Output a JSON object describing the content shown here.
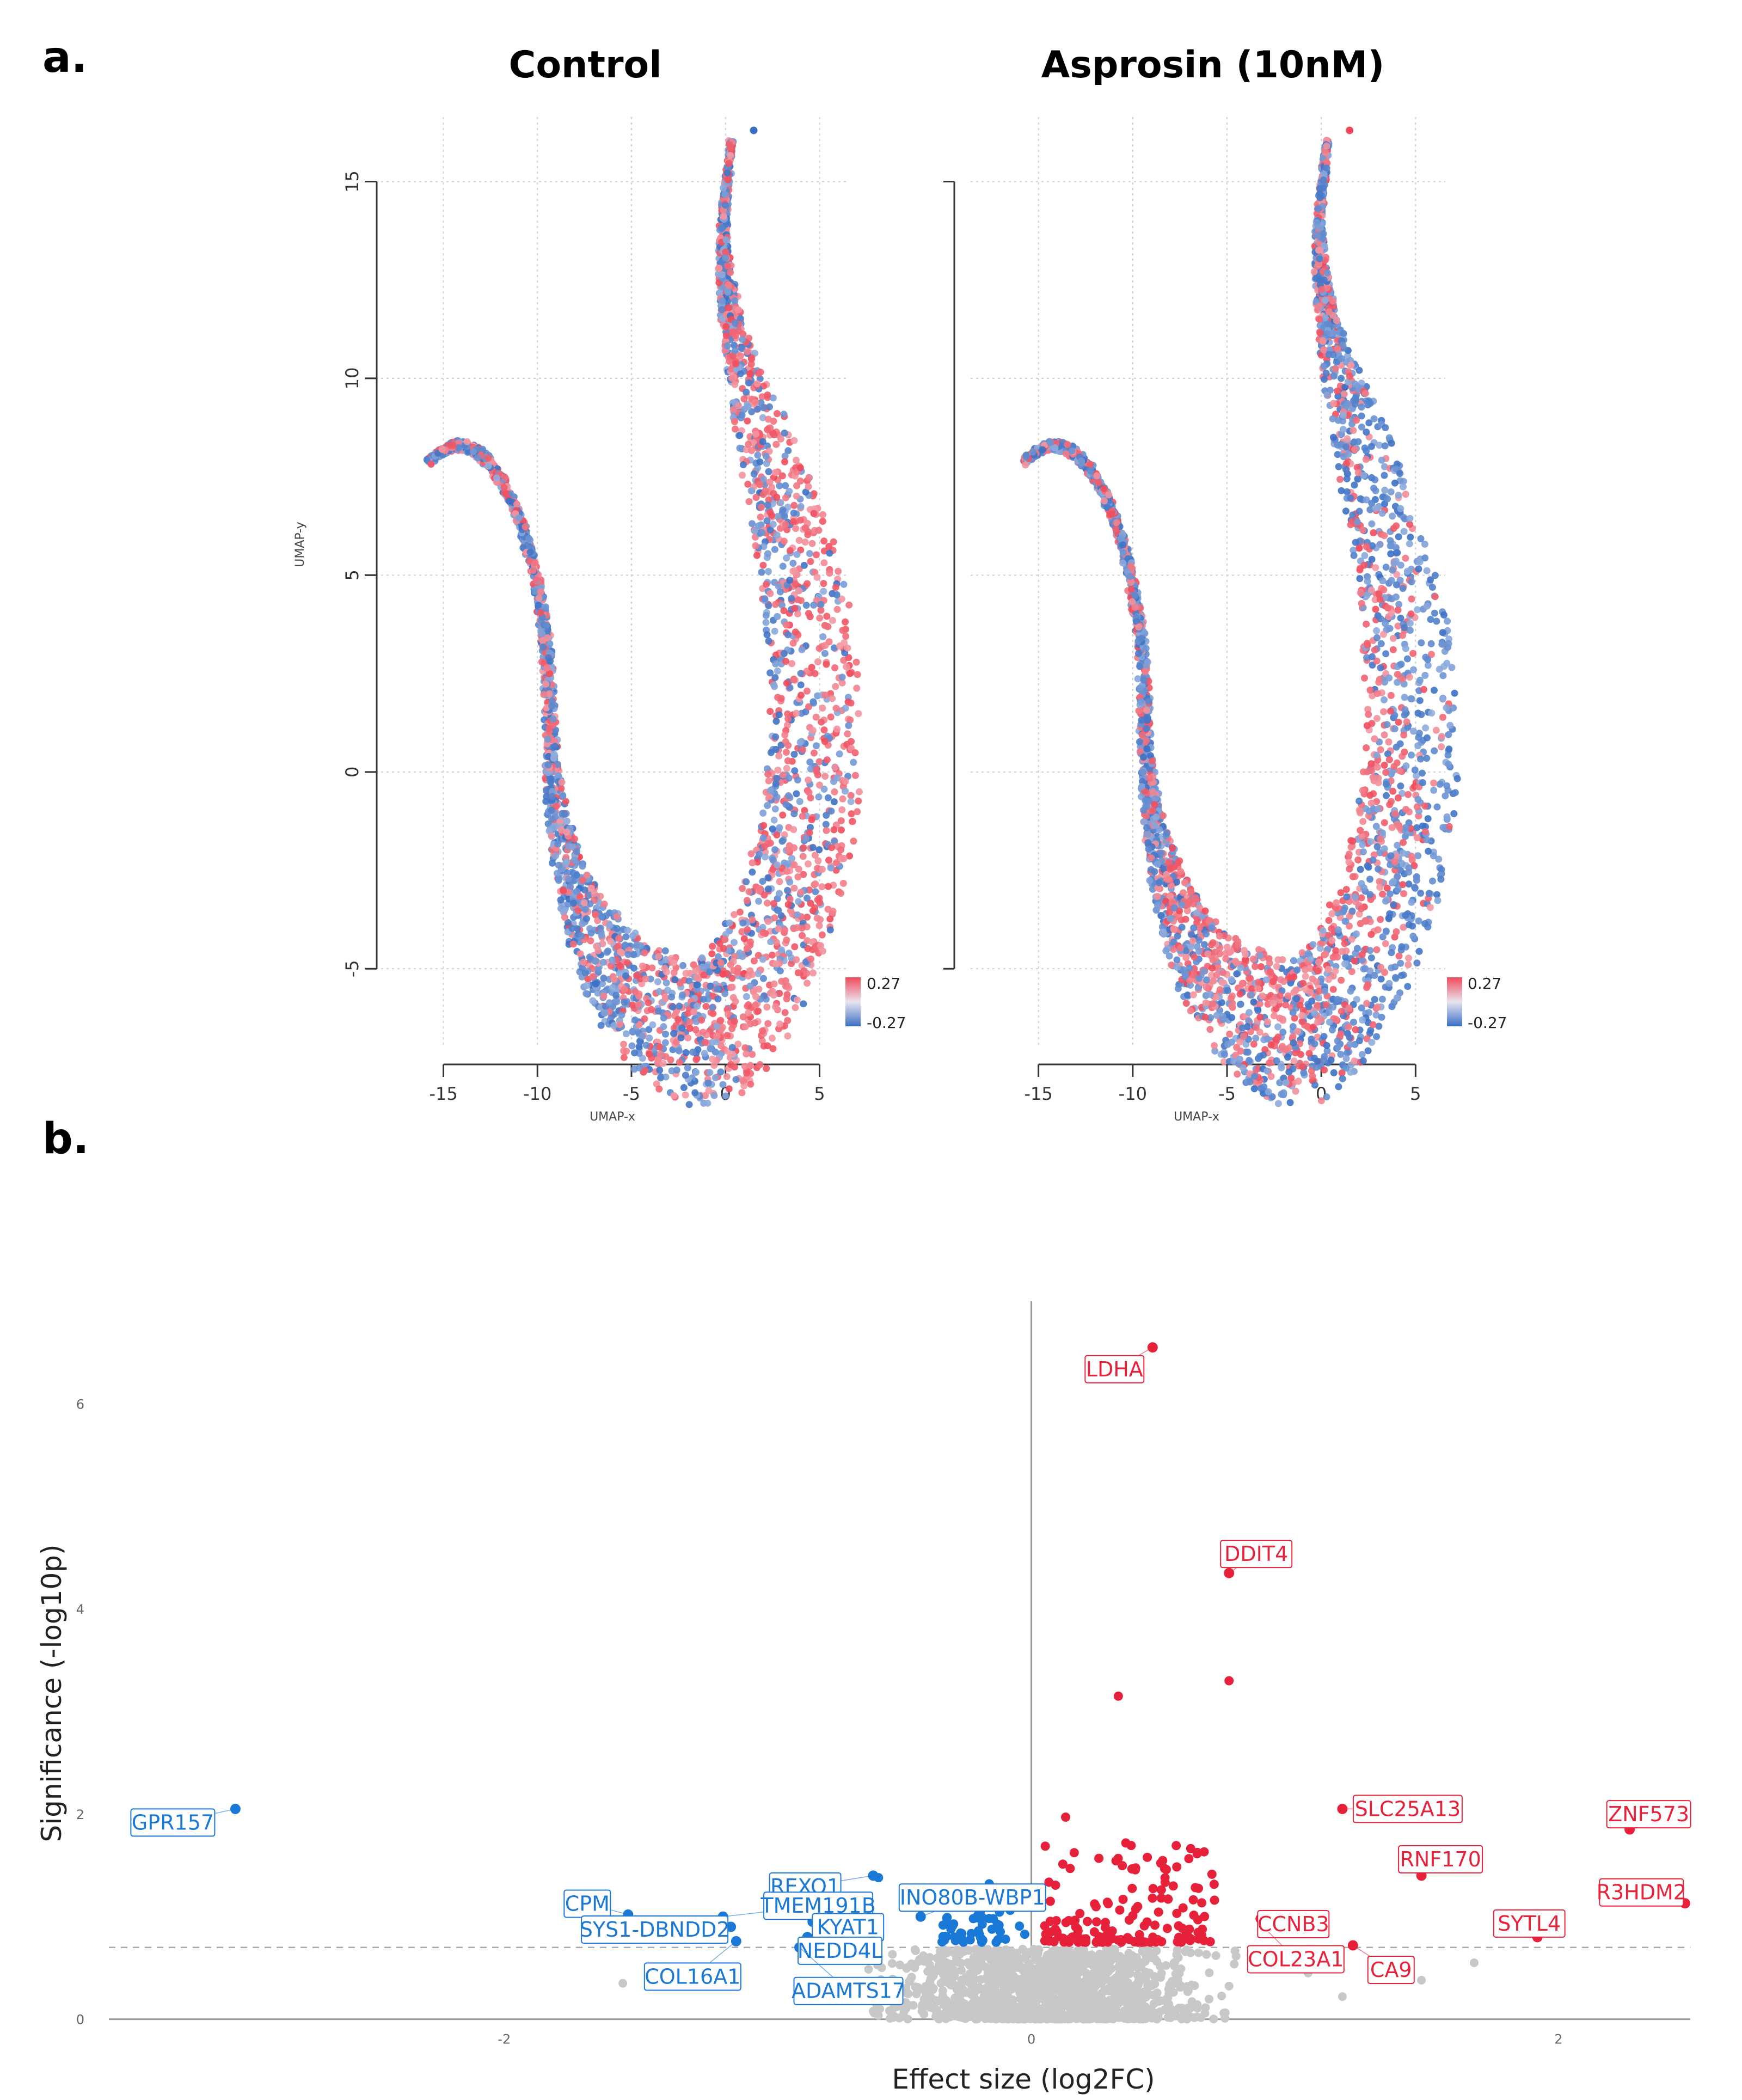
{
  "panels": {
    "a_label": "a.",
    "b_label": "b."
  },
  "chart_data": [
    {
      "type": "scatter",
      "title": "Control",
      "xlabel": "UMAP-x",
      "ylabel": "UMAP-y",
      "xlim": [
        -16,
        6
      ],
      "ylim": [
        -7.5,
        16.5
      ],
      "xticks": [
        "-15",
        "-10",
        "-5",
        "0",
        "5"
      ],
      "yticks": [
        "-5",
        "0",
        "5",
        "10",
        "15"
      ],
      "show_yaxis": true,
      "legend": {
        "position": "bottom-right",
        "max_label": "0.27",
        "min_label": "-0.27"
      },
      "grid": true,
      "colors": {
        "high": "#f04a5a",
        "low": "#3a6fc4"
      },
      "red_bias_regions": "upper arm inner edge, middle of curve",
      "seed": 7
    },
    {
      "type": "scatter",
      "title": "Asprosin (10nM)",
      "xlabel": "UMAP-x",
      "ylabel": "",
      "xlim": [
        -16,
        6
      ],
      "ylim": [
        -7.5,
        16.5
      ],
      "xticks": [
        "-15",
        "-10",
        "-5",
        "0",
        "5"
      ],
      "yticks": [],
      "show_yaxis": false,
      "legend": {
        "position": "bottom-right",
        "max_label": "0.27",
        "min_label": "-0.27"
      },
      "grid": true,
      "colors": {
        "high": "#f04a5a",
        "low": "#3a6fc4"
      },
      "red_bias_regions": "outer edge and bottom of curve",
      "seed": 19
    },
    {
      "type": "scatter",
      "subtype": "volcano",
      "xlabel": "Effect size (log2FC)",
      "ylabel": "Significance (-log10p)",
      "xlim": [
        -3.5,
        2.5
      ],
      "ylim": [
        -0.05,
        7.0
      ],
      "xticks": [
        {
          "v": -2,
          "t": "-2"
        },
        {
          "v": 0,
          "t": "0"
        },
        {
          "v": 2,
          "t": "2"
        }
      ],
      "yticks": [
        {
          "v": 0,
          "t": "0"
        },
        {
          "v": 2,
          "t": "2"
        },
        {
          "v": 4,
          "t": "4"
        },
        {
          "v": 6,
          "t": "6"
        }
      ],
      "threshold": 0.7,
      "colors": {
        "up": "#e8213a",
        "down": "#1a78d6",
        "ns": "#c8c8c8"
      },
      "labeled_genes": [
        {
          "name": "LDHA",
          "x": 0.46,
          "y": 6.55,
          "dir": "up"
        },
        {
          "name": "DDIT4",
          "x": 0.75,
          "y": 4.35,
          "dir": "up"
        },
        {
          "name": "SLC25A13",
          "x": 1.18,
          "y": 2.05,
          "dir": "up"
        },
        {
          "name": "ZNF573",
          "x": 2.27,
          "y": 1.85,
          "dir": "up"
        },
        {
          "name": "RNF170",
          "x": 1.48,
          "y": 1.4,
          "dir": "up"
        },
        {
          "name": "R3HDM2",
          "x": 2.48,
          "y": 1.13,
          "dir": "up"
        },
        {
          "name": "CCNB3",
          "x": 0.87,
          "y": 0.98,
          "dir": "up"
        },
        {
          "name": "COL23A1",
          "x": 0.9,
          "y": 0.85,
          "dir": "up"
        },
        {
          "name": "SYTL4",
          "x": 1.92,
          "y": 0.8,
          "dir": "up"
        },
        {
          "name": "CA9",
          "x": 1.22,
          "y": 0.72,
          "dir": "up"
        },
        {
          "name": "GPR157",
          "x": -3.02,
          "y": 2.05,
          "dir": "down"
        },
        {
          "name": "REXO1",
          "x": -0.6,
          "y": 1.4,
          "dir": "down"
        },
        {
          "name": "CPM",
          "x": -1.53,
          "y": 1.02,
          "dir": "down"
        },
        {
          "name": "TMEM191B",
          "x": -1.17,
          "y": 1.0,
          "dir": "down"
        },
        {
          "name": "KYAT1",
          "x": -0.83,
          "y": 0.95,
          "dir": "down"
        },
        {
          "name": "INO80B-WBP1",
          "x": -0.42,
          "y": 1.0,
          "dir": "down"
        },
        {
          "name": "SYS1-DBNDD2",
          "x": -1.14,
          "y": 0.9,
          "dir": "down"
        },
        {
          "name": "NEDD4L",
          "x": -0.85,
          "y": 0.8,
          "dir": "down"
        },
        {
          "name": "COL16A1",
          "x": -1.12,
          "y": 0.76,
          "dir": "down"
        },
        {
          "name": "ADAMTS17",
          "x": -0.88,
          "y": 0.7,
          "dir": "down"
        }
      ],
      "extra_significant_points": [
        {
          "x": 0.75,
          "y": 3.3,
          "dir": "up"
        },
        {
          "x": 0.33,
          "y": 3.15,
          "dir": "up"
        },
        {
          "x": 0.13,
          "y": 1.97,
          "dir": "up"
        },
        {
          "x": -0.26,
          "y": 1.25,
          "dir": "down"
        },
        {
          "x": -0.16,
          "y": 1.32,
          "dir": "down"
        },
        {
          "x": -0.58,
          "y": 1.38,
          "dir": "down"
        }
      ]
    }
  ]
}
